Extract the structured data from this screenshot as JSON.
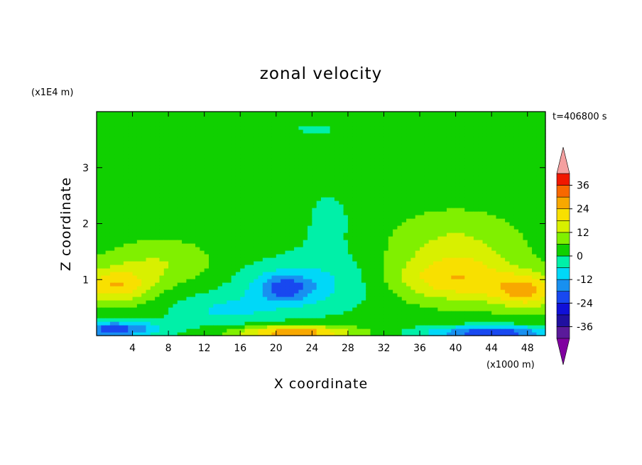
{
  "chart_data": {
    "type": "heatmap",
    "title": "zonal velocity",
    "xlabel": "X coordinate",
    "ylabel": "Z coordinate",
    "x_unit": "(x1000 m)",
    "y_unit": "(x1E4 m)",
    "time_label": "t=406800  s",
    "xlim": [
      0,
      50
    ],
    "ylim": [
      0,
      4
    ],
    "x_ticks": [
      4,
      8,
      12,
      16,
      20,
      24,
      28,
      32,
      36,
      40,
      44,
      48
    ],
    "y_ticks": [
      1,
      2,
      3
    ],
    "colorbar": {
      "min": -42,
      "max": 42,
      "step": 6,
      "tick_labels": [
        "36",
        "24",
        "12",
        "0",
        "-12",
        "-24",
        "-36"
      ],
      "tick_values": [
        36,
        24,
        12,
        0,
        -12,
        -24,
        -36
      ],
      "extend": "both",
      "low_overflow_color": "#8000a0",
      "high_overflow_color": "#f4a0a0"
    },
    "levels": [
      {
        "min": -42,
        "max": -36,
        "color": "#5a1a9a"
      },
      {
        "min": -36,
        "max": -30,
        "color": "#2010a0"
      },
      {
        "min": -30,
        "max": -24,
        "color": "#1010d8"
      },
      {
        "min": -24,
        "max": -18,
        "color": "#1848f0"
      },
      {
        "min": -18,
        "max": -12,
        "color": "#1890f0"
      },
      {
        "min": -12,
        "max": -6,
        "color": "#00d8f8"
      },
      {
        "min": -6,
        "max": 0,
        "color": "#00f0a8"
      },
      {
        "min": 0,
        "max": 6,
        "color": "#10d000"
      },
      {
        "min": 6,
        "max": 12,
        "color": "#80f000"
      },
      {
        "min": 12,
        "max": 18,
        "color": "#d8f000"
      },
      {
        "min": 18,
        "max": 24,
        "color": "#f8e000"
      },
      {
        "min": 24,
        "max": 30,
        "color": "#f8a800"
      },
      {
        "min": 30,
        "max": 36,
        "color": "#f86800"
      },
      {
        "min": 36,
        "max": 42,
        "color": "#f01800"
      }
    ],
    "field_features": [
      {
        "x": 2,
        "z": 0.9,
        "u": 20,
        "sx": 4,
        "sz": 0.3
      },
      {
        "x": 48,
        "z": 0.8,
        "u": 20,
        "sx": 4,
        "sz": 0.3
      },
      {
        "x": 40,
        "z": 1.0,
        "u": 17,
        "sx": 7,
        "sz": 0.4
      },
      {
        "x": 40,
        "z": 1.6,
        "u": 10,
        "sx": 7,
        "sz": 0.6
      },
      {
        "x": 7,
        "z": 1.3,
        "u": 9,
        "sx": 6,
        "sz": 0.4
      },
      {
        "x": 21,
        "z": 0.85,
        "u": -16,
        "sx": 3,
        "sz": 0.25
      },
      {
        "x": 23,
        "z": 0.9,
        "u": -10,
        "sx": 8,
        "sz": 0.5
      },
      {
        "x": 22,
        "z": 0.06,
        "u": 28,
        "sx": 6,
        "sz": 0.12
      },
      {
        "x": 2,
        "z": 0.12,
        "u": -24,
        "sx": 5,
        "sz": 0.15
      },
      {
        "x": 44,
        "z": 0.06,
        "u": -26,
        "sx": 7,
        "sz": 0.12
      },
      {
        "x": 14,
        "z": 0.45,
        "u": -9,
        "sx": 6,
        "sz": 0.3
      },
      {
        "x": 24,
        "z": 3.7,
        "u": -3,
        "sx": 10,
        "sz": 0.4
      },
      {
        "x": 26,
        "z": 2.0,
        "u": -4,
        "sx": 4,
        "sz": 0.9
      }
    ]
  }
}
